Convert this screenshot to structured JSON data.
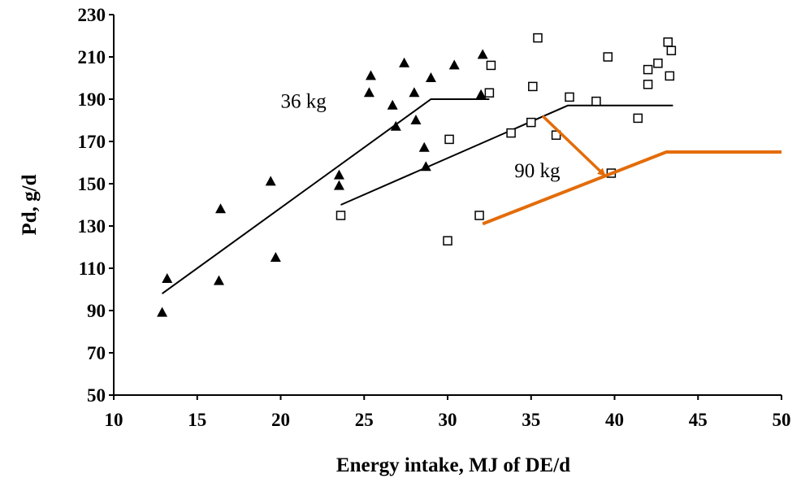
{
  "chart_data": {
    "type": "scatter",
    "title": "",
    "xlabel": "Energy intake, MJ of DE/d",
    "ylabel": "Pd, g/d",
    "xlim": [
      10,
      50
    ],
    "ylim": [
      50,
      230
    ],
    "xticks": [
      "10",
      "15",
      "20",
      "25",
      "30",
      "35",
      "40",
      "45",
      "50"
    ],
    "yticks": [
      "50",
      "70",
      "90",
      "110",
      "130",
      "150",
      "170",
      "190",
      "210",
      "230"
    ],
    "grid": false,
    "legend": "none",
    "series": [
      {
        "name": "36 kg",
        "marker": "filled-triangle",
        "color": "#000000",
        "points": [
          [
            12.9,
            89
          ],
          [
            13.2,
            105
          ],
          [
            16.3,
            104
          ],
          [
            16.4,
            138
          ],
          [
            19.4,
            151
          ],
          [
            19.7,
            115
          ],
          [
            23.5,
            154
          ],
          [
            23.5,
            149
          ],
          [
            25.3,
            193
          ],
          [
            25.4,
            201
          ],
          [
            26.7,
            187
          ],
          [
            26.9,
            177
          ],
          [
            27.4,
            207
          ],
          [
            28.0,
            193
          ],
          [
            28.1,
            180
          ],
          [
            28.6,
            167
          ],
          [
            28.7,
            158
          ],
          [
            29.0,
            200
          ],
          [
            30.4,
            206
          ],
          [
            32.0,
            192
          ],
          [
            32.1,
            211
          ]
        ],
        "fit": [
          [
            12.9,
            98
          ],
          [
            29.0,
            190
          ],
          [
            32.5,
            190
          ]
        ]
      },
      {
        "name": "90 kg",
        "marker": "open-square",
        "color": "#000000",
        "points": [
          [
            23.6,
            135
          ],
          [
            30.0,
            123
          ],
          [
            30.1,
            171
          ],
          [
            31.9,
            135
          ],
          [
            32.5,
            193
          ],
          [
            32.6,
            206
          ],
          [
            33.8,
            174
          ],
          [
            35.0,
            179
          ],
          [
            35.1,
            196
          ],
          [
            35.4,
            219
          ],
          [
            36.5,
            173
          ],
          [
            37.3,
            191
          ],
          [
            38.9,
            189
          ],
          [
            39.6,
            210
          ],
          [
            39.8,
            155
          ],
          [
            41.4,
            181
          ],
          [
            42.0,
            197
          ],
          [
            42.0,
            204
          ],
          [
            42.6,
            207
          ],
          [
            43.2,
            217
          ],
          [
            43.3,
            201
          ],
          [
            43.4,
            213
          ]
        ],
        "fit": [
          [
            23.6,
            140
          ],
          [
            37.2,
            187
          ],
          [
            43.5,
            187
          ]
        ]
      }
    ],
    "overlay": {
      "color": "#E36C09",
      "line": [
        [
          32.1,
          131
        ],
        [
          43.1,
          165
        ],
        [
          50.0,
          165
        ]
      ],
      "arrow": {
        "from": [
          35.7,
          182
        ],
        "to": [
          39.4,
          154
        ]
      }
    },
    "annotations": [
      {
        "text": "36 kg",
        "x": 20.0,
        "y": 186
      },
      {
        "text": "90 kg",
        "x": 34.0,
        "y": 153
      }
    ]
  }
}
